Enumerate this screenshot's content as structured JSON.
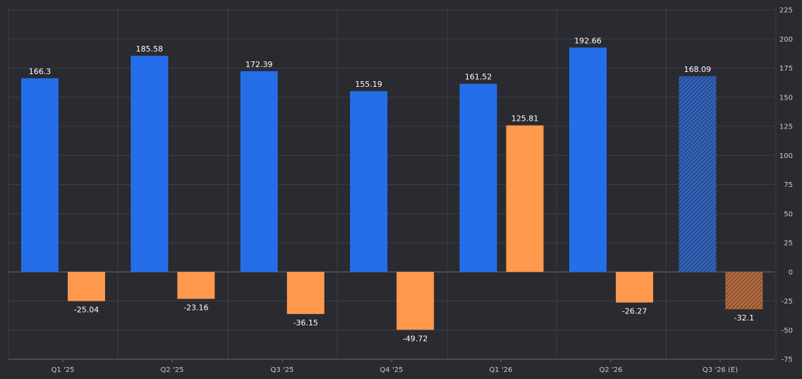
{
  "chart_data": {
    "type": "bar",
    "categories": [
      "Q1 '25",
      "Q2 '25",
      "Q3 '25",
      "Q4 '25",
      "Q1 '26",
      "Q2 '26",
      "Q3 '26 (E)"
    ],
    "series": [
      {
        "values": [
          166.3,
          185.58,
          172.39,
          155.19,
          161.52,
          192.66,
          168.09
        ],
        "color": "#256ee9"
      },
      {
        "values": [
          -25.04,
          -23.16,
          -36.15,
          -49.72,
          125.81,
          -26.27,
          -32.1
        ],
        "color": "#ff994d"
      }
    ],
    "estimated_category": "Q3 '26 (E)",
    "value_labels": {
      "series0": [
        "166.3",
        "185.58",
        "172.39",
        "155.19",
        "161.52",
        "192.66",
        "168.09"
      ],
      "series1": [
        "-25.04",
        "-23.16",
        "-36.15",
        "-49.72",
        "125.81",
        "-26.27",
        "-32.1"
      ]
    },
    "y_ticks": [
      "225",
      "200",
      "175",
      "150",
      "125",
      "100",
      "75",
      "50",
      "25",
      "0",
      "-25",
      "-50",
      "-75"
    ],
    "y_tick_values": [
      225,
      200,
      175,
      150,
      125,
      100,
      75,
      50,
      25,
      0,
      -25,
      -50,
      -75
    ],
    "ylim": [
      -75,
      225
    ],
    "y_axis_side": "right",
    "grid": true,
    "legend": "none",
    "colors": {
      "background": "#2a2a31",
      "grid": "#3e3e47",
      "zero_line": "#6a6a74",
      "tick_text": "#c9c9cf",
      "label_text": "#ffffff"
    }
  }
}
